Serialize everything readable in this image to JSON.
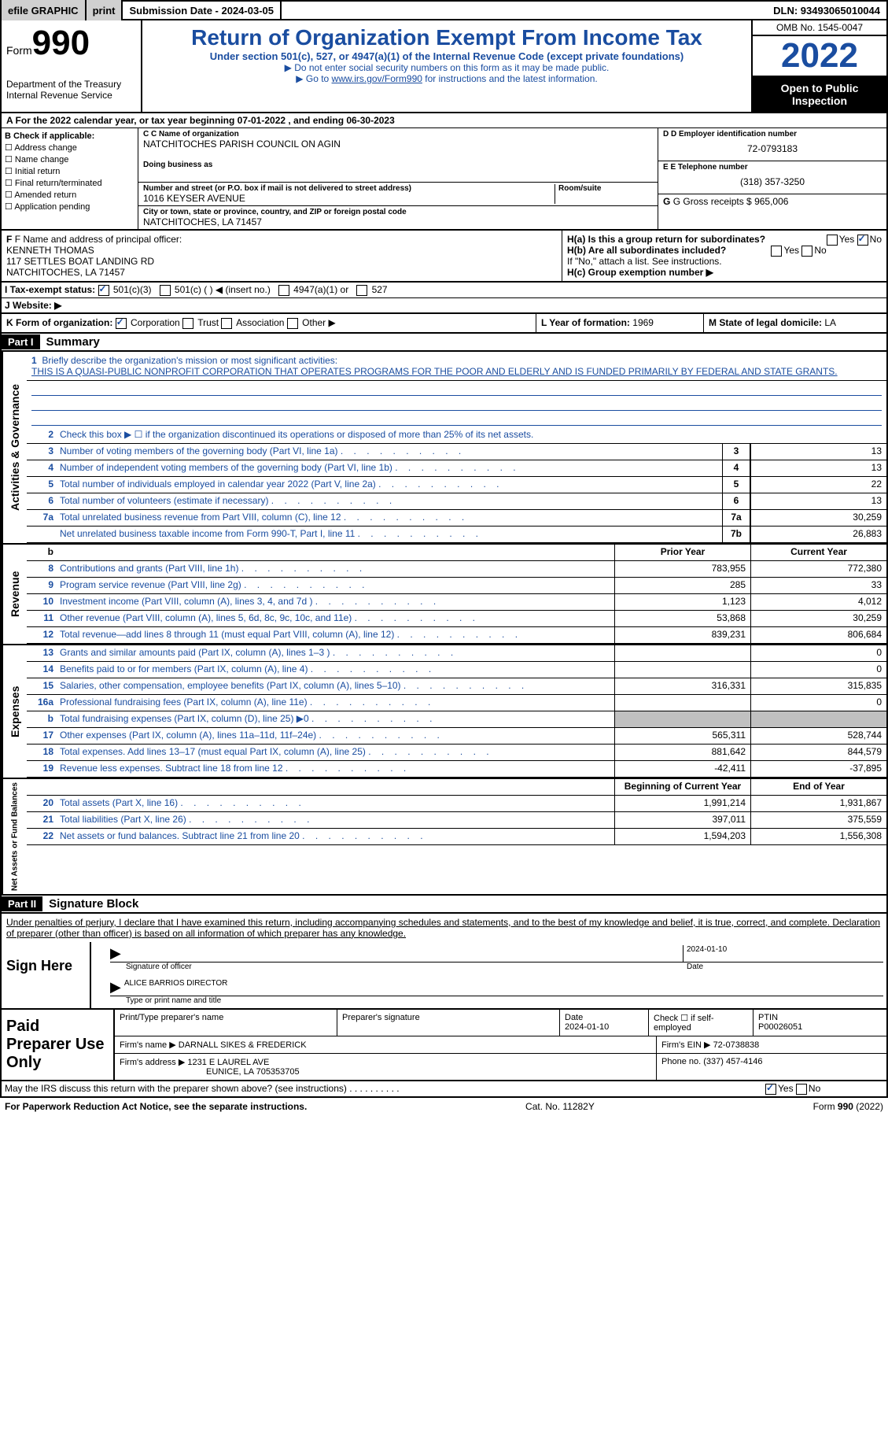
{
  "topbar": {
    "efile": "efile GRAPHIC",
    "print": "print",
    "submission": "Submission Date - 2024-03-05",
    "dln": "DLN: 93493065010044"
  },
  "header": {
    "form_label": "Form",
    "form_number": "990",
    "title": "Return of Organization Exempt From Income Tax",
    "subtitle": "Under section 501(c), 527, or 4947(a)(1) of the Internal Revenue Code (except private foundations)",
    "note1": "▶ Do not enter social security numbers on this form as it may be made public.",
    "note2_prefix": "▶ Go to ",
    "note2_link": "www.irs.gov/Form990",
    "note2_suffix": " for instructions and the latest information.",
    "dept": "Department of the Treasury",
    "irs": "Internal Revenue Service",
    "omb": "OMB No. 1545-0047",
    "year": "2022",
    "inspection": "Open to Public Inspection"
  },
  "line_a": "A For the 2022 calendar year, or tax year beginning 07-01-2022    , and ending 06-30-2023",
  "section_b": {
    "label": "B Check if applicable:",
    "opts": [
      "Address change",
      "Name change",
      "Initial return",
      "Final return/terminated",
      "Amended return",
      "Application pending"
    ],
    "c_label": "C Name of organization",
    "c_name": "NATCHITOCHES PARISH COUNCIL ON AGIN",
    "dba_label": "Doing business as",
    "addr_label": "Number and street (or P.O. box if mail is not delivered to street address)",
    "room_label": "Room/suite",
    "addr": "1016 KEYSER AVENUE",
    "city_label": "City or town, state or province, country, and ZIP or foreign postal code",
    "city": "NATCHITOCHES, LA  71457",
    "d_label": "D Employer identification number",
    "d_ein": "72-0793183",
    "e_label": "E Telephone number",
    "e_phone": "(318) 357-3250",
    "g_label": "G Gross receipts $",
    "g_val": "965,006"
  },
  "section_f": {
    "f_label": "F Name and address of principal officer:",
    "name": "KENNETH THOMAS",
    "addr1": "117 SETTLES BOAT LANDING RD",
    "addr2": "NATCHITOCHES, LA  71457",
    "ha": "H(a)  Is this a group return for subordinates?",
    "hb": "H(b)  Are all subordinates included?",
    "hb_note": "If \"No,\" attach a list. See instructions.",
    "hc": "H(c)  Group exemption number ▶",
    "yes": "Yes",
    "no": "No"
  },
  "section_i": {
    "label": "I   Tax-exempt status:",
    "opt1": "501(c)(3)",
    "opt2": "501(c) (   ) ◀ (insert no.)",
    "opt3": "4947(a)(1) or",
    "opt4": "527"
  },
  "section_j": {
    "label": "J   Website: ▶"
  },
  "section_k": {
    "k_label": "K Form of organization:",
    "k_opts": [
      "Corporation",
      "Trust",
      "Association",
      "Other ▶"
    ],
    "l_label": "L Year of formation:",
    "l_val": "1969",
    "m_label": "M State of legal domicile:",
    "m_val": "LA"
  },
  "part1": {
    "header": "Part I",
    "title": "Summary",
    "line1_label": "Briefly describe the organization's mission or most significant activities:",
    "mission": "THIS IS A QUASI-PUBLIC NONPROFIT CORPORATION THAT OPERATES PROGRAMS FOR THE POOR AND ELDERLY AND IS FUNDED PRIMARILY BY FEDERAL AND STATE GRANTS.",
    "line2": "Check this box ▶ ☐ if the organization discontinued its operations or disposed of more than 25% of its net assets.",
    "prior_year": "Prior Year",
    "current_year": "Current Year",
    "boy": "Beginning of Current Year",
    "eoy": "End of Year"
  },
  "lines_gov": [
    {
      "no": "3",
      "desc": "Number of voting members of the governing body (Part VI, line 1a)",
      "nc": "3",
      "v": "13"
    },
    {
      "no": "4",
      "desc": "Number of independent voting members of the governing body (Part VI, line 1b)",
      "nc": "4",
      "v": "13"
    },
    {
      "no": "5",
      "desc": "Total number of individuals employed in calendar year 2022 (Part V, line 2a)",
      "nc": "5",
      "v": "22"
    },
    {
      "no": "6",
      "desc": "Total number of volunteers (estimate if necessary)",
      "nc": "6",
      "v": "13"
    },
    {
      "no": "7a",
      "desc": "Total unrelated business revenue from Part VIII, column (C), line 12",
      "nc": "7a",
      "v": "30,259"
    },
    {
      "no": "",
      "desc": "Net unrelated business taxable income from Form 990-T, Part I, line 11",
      "nc": "7b",
      "v": "26,883"
    }
  ],
  "lines_rev": [
    {
      "no": "8",
      "desc": "Contributions and grants (Part VIII, line 1h)",
      "py": "783,955",
      "cy": "772,380"
    },
    {
      "no": "9",
      "desc": "Program service revenue (Part VIII, line 2g)",
      "py": "285",
      "cy": "33"
    },
    {
      "no": "10",
      "desc": "Investment income (Part VIII, column (A), lines 3, 4, and 7d )",
      "py": "1,123",
      "cy": "4,012"
    },
    {
      "no": "11",
      "desc": "Other revenue (Part VIII, column (A), lines 5, 6d, 8c, 9c, 10c, and 11e)",
      "py": "53,868",
      "cy": "30,259"
    },
    {
      "no": "12",
      "desc": "Total revenue—add lines 8 through 11 (must equal Part VIII, column (A), line 12)",
      "py": "839,231",
      "cy": "806,684"
    }
  ],
  "lines_exp": [
    {
      "no": "13",
      "desc": "Grants and similar amounts paid (Part IX, column (A), lines 1–3 )",
      "py": "",
      "cy": "0"
    },
    {
      "no": "14",
      "desc": "Benefits paid to or for members (Part IX, column (A), line 4)",
      "py": "",
      "cy": "0"
    },
    {
      "no": "15",
      "desc": "Salaries, other compensation, employee benefits (Part IX, column (A), lines 5–10)",
      "py": "316,331",
      "cy": "315,835"
    },
    {
      "no": "16a",
      "desc": "Professional fundraising fees (Part IX, column (A), line 11e)",
      "py": "",
      "cy": "0"
    },
    {
      "no": "b",
      "desc": "Total fundraising expenses (Part IX, column (D), line 25) ▶0",
      "py": "gray",
      "cy": "gray"
    },
    {
      "no": "17",
      "desc": "Other expenses (Part IX, column (A), lines 11a–11d, 11f–24e)",
      "py": "565,311",
      "cy": "528,744"
    },
    {
      "no": "18",
      "desc": "Total expenses. Add lines 13–17 (must equal Part IX, column (A), line 25)",
      "py": "881,642",
      "cy": "844,579"
    },
    {
      "no": "19",
      "desc": "Revenue less expenses. Subtract line 18 from line 12",
      "py": "-42,411",
      "cy": "-37,895"
    }
  ],
  "lines_net": [
    {
      "no": "20",
      "desc": "Total assets (Part X, line 16)",
      "py": "1,991,214",
      "cy": "1,931,867"
    },
    {
      "no": "21",
      "desc": "Total liabilities (Part X, line 26)",
      "py": "397,011",
      "cy": "375,559"
    },
    {
      "no": "22",
      "desc": "Net assets or fund balances. Subtract line 21 from line 20",
      "py": "1,594,203",
      "cy": "1,556,308"
    }
  ],
  "vtabs": {
    "gov": "Activities & Governance",
    "rev": "Revenue",
    "exp": "Expenses",
    "net": "Net Assets or Fund Balances"
  },
  "part2": {
    "header": "Part II",
    "title": "Signature Block",
    "penalty": "Under penalties of perjury, I declare that I have examined this return, including accompanying schedules and statements, and to the best of my knowledge and belief, it is true, correct, and complete. Declaration of preparer (other than officer) is based on all information of which preparer has any knowledge.",
    "sign_here": "Sign Here",
    "sig_officer": "Signature of officer",
    "sig_date": "2024-01-10",
    "date_label": "Date",
    "name_title": "ALICE BARRIOS DIRECTOR",
    "name_label": "Type or print name and title",
    "paid": "Paid Preparer Use Only",
    "print_name": "Print/Type preparer's name",
    "prep_sig": "Preparer's signature",
    "prep_date_label": "Date",
    "prep_date": "2024-01-10",
    "check_label": "Check ☐ if self-employed",
    "ptin_label": "PTIN",
    "ptin": "P00026051",
    "firm_name_label": "Firm's name    ▶",
    "firm_name": "DARNALL SIKES & FREDERICK",
    "firm_ein_label": "Firm's EIN ▶",
    "firm_ein": "72-0738838",
    "firm_addr_label": "Firm's address ▶",
    "firm_addr": "1231 E LAUREL AVE",
    "firm_city": "EUNICE, LA  705353705",
    "phone_label": "Phone no.",
    "phone": "(337) 457-4146",
    "may_irs": "May the IRS discuss this return with the preparer shown above? (see instructions)"
  },
  "footer": {
    "paperwork": "For Paperwork Reduction Act Notice, see the separate instructions.",
    "cat": "Cat. No. 11282Y",
    "form": "Form 990 (2022)"
  },
  "colors": {
    "link": "#1a4da0"
  }
}
